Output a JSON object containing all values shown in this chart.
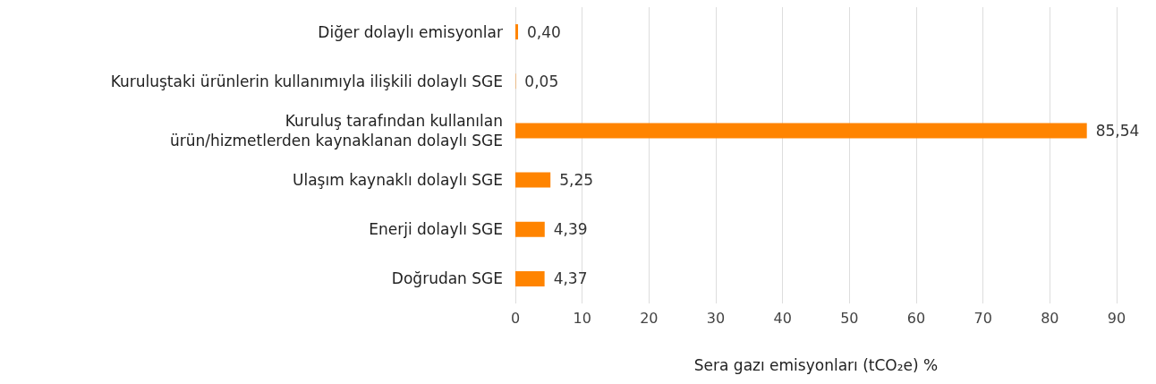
{
  "chart_data": {
    "type": "bar",
    "orientation": "horizontal",
    "xlabel": "Sera gazı emisyonları (tCO₂e) %",
    "categories": [
      "Diğer dolaylı emisyonlar",
      "Kuruluştaki ürünlerin kullanımıyla ilişkili dolaylı SGE",
      "Kuruluş tarafından kullanılan\nürün/hizmetlerden kaynaklanan dolaylı SGE",
      "Ulaşım kaynaklı dolaylı SGE",
      "Enerji dolaylı SGE",
      "Doğrudan SGE"
    ],
    "values": [
      0.4,
      0.05,
      85.54,
      5.25,
      4.39,
      4.37
    ],
    "value_labels": [
      "0,40",
      "0,05",
      "85,54",
      "5,25",
      "4,39",
      "4,37"
    ],
    "color": "#ff8400",
    "xlim": [
      0,
      90
    ],
    "xticks": [
      0,
      10,
      20,
      30,
      40,
      50,
      60,
      70,
      80,
      90
    ],
    "grid": "x"
  }
}
